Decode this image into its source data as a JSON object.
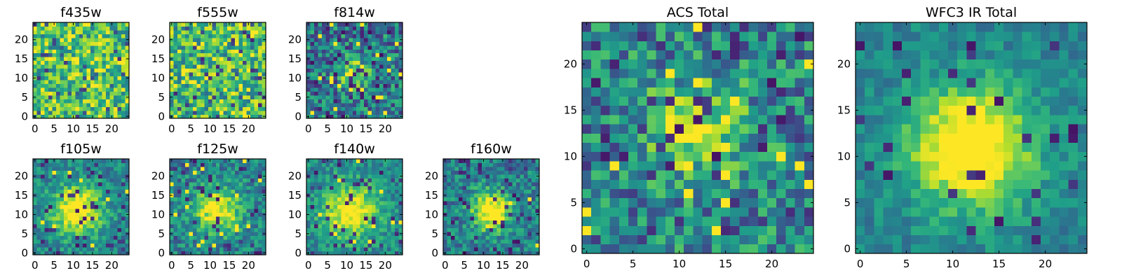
{
  "chart_data": [
    {
      "type": "heatmap",
      "title": "f435w",
      "xticks": [
        0,
        5,
        10,
        15,
        20
      ],
      "yticks": [
        0,
        5,
        10,
        15,
        20
      ],
      "xlim": [
        0,
        24
      ],
      "ylim": [
        0,
        24
      ],
      "grid_size": 25,
      "colormap": "viridis",
      "grid": false,
      "source": {
        "field": "uniform",
        "noise": 1.0,
        "hot": 0.08,
        "cold": 0.06,
        "gamma": 0.7
      }
    },
    {
      "type": "heatmap",
      "title": "f555w",
      "xticks": [
        0,
        5,
        10,
        15,
        20
      ],
      "yticks": [
        0,
        5,
        10,
        15,
        20
      ],
      "xlim": [
        0,
        24
      ],
      "ylim": [
        0,
        24
      ],
      "grid_size": 25,
      "colormap": "viridis",
      "grid": false,
      "source": {
        "field": "uniform",
        "noise": 1.0,
        "hot": 0.07,
        "cold": 0.06,
        "gamma": 0.8
      }
    },
    {
      "type": "heatmap",
      "title": "f814w",
      "xticks": [
        0,
        5,
        10,
        15,
        20
      ],
      "yticks": [
        0,
        5,
        10,
        15,
        20
      ],
      "xlim": [
        0,
        24
      ],
      "ylim": [
        0,
        24
      ],
      "grid_size": 25,
      "colormap": "viridis",
      "grid": false,
      "source": {
        "field": "gaussian",
        "center_x": 12,
        "center_y": 11,
        "sigma": 2.5,
        "amplitude": 0.55,
        "noise": 0.55,
        "hot": 0.03,
        "cold": 0.1,
        "gamma": 1.1
      }
    },
    {
      "type": "heatmap",
      "title": "f105w",
      "xticks": [
        0,
        5,
        10,
        15,
        20
      ],
      "yticks": [
        0,
        5,
        10,
        15,
        20
      ],
      "xlim": [
        0,
        24
      ],
      "ylim": [
        0,
        24
      ],
      "grid_size": 25,
      "colormap": "viridis",
      "grid": false,
      "source": {
        "field": "gaussian",
        "center_x": 11,
        "center_y": 11,
        "sigma": 4.5,
        "amplitude": 0.65,
        "noise": 0.35,
        "hot": 0.02,
        "cold": 0.08,
        "gamma": 1.0
      }
    },
    {
      "type": "heatmap",
      "title": "f125w",
      "xticks": [
        0,
        5,
        10,
        15,
        20
      ],
      "yticks": [
        0,
        5,
        10,
        15,
        20
      ],
      "xlim": [
        0,
        24
      ],
      "ylim": [
        0,
        24
      ],
      "grid_size": 25,
      "colormap": "viridis",
      "grid": false,
      "source": {
        "field": "gaussian",
        "center_x": 12,
        "center_y": 11,
        "sigma": 4.0,
        "amplitude": 0.6,
        "noise": 0.4,
        "hot": 0.03,
        "cold": 0.07,
        "gamma": 1.0
      }
    },
    {
      "type": "heatmap",
      "title": "f140w",
      "xticks": [
        0,
        5,
        10,
        15,
        20
      ],
      "yticks": [
        0,
        5,
        10,
        15,
        20
      ],
      "xlim": [
        0,
        24
      ],
      "ylim": [
        0,
        24
      ],
      "grid_size": 25,
      "colormap": "viridis",
      "grid": false,
      "source": {
        "field": "gaussian",
        "center_x": 11,
        "center_y": 11,
        "sigma": 5.0,
        "amplitude": 0.6,
        "noise": 0.35,
        "hot": 0.02,
        "cold": 0.06,
        "gamma": 0.95
      }
    },
    {
      "type": "heatmap",
      "title": "f160w",
      "xticks": [
        0,
        5,
        10,
        15,
        20
      ],
      "yticks": [
        0,
        5,
        10,
        15,
        20
      ],
      "xlim": [
        0,
        24
      ],
      "ylim": [
        0,
        24
      ],
      "grid_size": 25,
      "colormap": "viridis",
      "grid": false,
      "source": {
        "field": "gaussian",
        "center_x": 12,
        "center_y": 11,
        "sigma": 3.5,
        "amplitude": 0.65,
        "noise": 0.4,
        "hot": 0.02,
        "cold": 0.08,
        "gamma": 1.05
      }
    },
    {
      "type": "heatmap",
      "title": "ACS Total",
      "xticks": [
        0,
        5,
        10,
        15,
        20
      ],
      "yticks": [
        0,
        5,
        10,
        15,
        20
      ],
      "xlim": [
        0,
        24
      ],
      "ylim": [
        0,
        24
      ],
      "grid_size": 25,
      "colormap": "viridis",
      "grid": false,
      "source": {
        "field": "gaussian",
        "center_x": 12,
        "center_y": 13,
        "sigma": 3.5,
        "amplitude": 0.5,
        "noise": 0.55,
        "hot": 0.02,
        "cold": 0.06,
        "gamma": 1.0
      }
    },
    {
      "type": "heatmap",
      "title": "WFC3 IR Total",
      "xticks": [
        0,
        5,
        10,
        15,
        20
      ],
      "yticks": [
        0,
        5,
        10,
        15,
        20
      ],
      "xlim": [
        0,
        24
      ],
      "ylim": [
        0,
        24
      ],
      "grid_size": 25,
      "colormap": "viridis",
      "grid": false,
      "source": {
        "field": "gaussian",
        "center_x": 12,
        "center_y": 11,
        "sigma": 4.5,
        "amplitude": 0.75,
        "noise": 0.25,
        "hot": 0.0,
        "cold": 0.05,
        "gamma": 1.0
      }
    }
  ]
}
